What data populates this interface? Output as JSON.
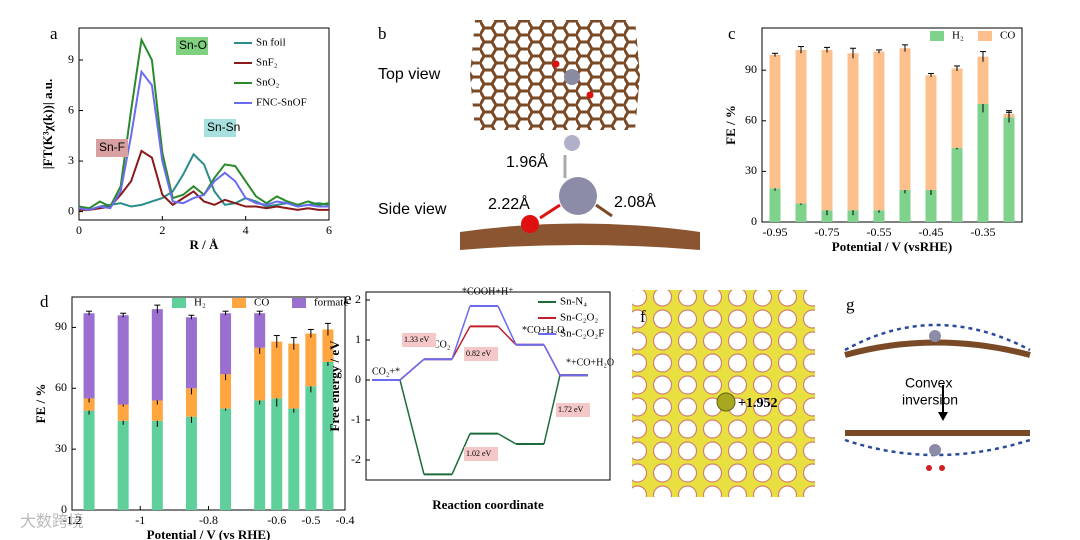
{
  "chart_data": [
    {
      "label": "a",
      "type": "line",
      "xlabel": "R / Å",
      "ylabel": "|FT(K³χ(k))| a.u.",
      "x": [
        0,
        0.25,
        0.5,
        0.75,
        1,
        1.25,
        1.5,
        1.75,
        2,
        2.25,
        2.5,
        2.75,
        3,
        3.25,
        3.5,
        3.75,
        4,
        4.25,
        4.5,
        4.75,
        5,
        5.25,
        5.5,
        5.75,
        6
      ],
      "xlim": [
        0,
        6
      ],
      "xticks": [
        0,
        2,
        4,
        6
      ],
      "ylim": [
        -0.5,
        10.9
      ],
      "yticks": [
        0,
        3,
        6,
        9
      ],
      "annotations": [
        "Sn-O",
        "Sn-F",
        "Sn-Sn"
      ],
      "legend": "upper right",
      "series": [
        {
          "name": "Sn foil",
          "color": "#2a8c8c",
          "values": [
            0.2,
            0.1,
            0.3,
            0.4,
            0.5,
            0.3,
            0.4,
            0.6,
            0.8,
            1.2,
            2.2,
            3.4,
            2.8,
            1.2,
            0.4,
            0.5,
            0.8,
            0.6,
            0.3,
            0.4,
            0.5,
            0.3,
            0.4,
            0.5,
            0.4
          ]
        },
        {
          "name": "SnF₂",
          "color": "#8b1a1a",
          "values": [
            0.1,
            0.1,
            0.2,
            0.3,
            1.0,
            1.8,
            3.6,
            3.2,
            1.0,
            0.4,
            0.8,
            1.2,
            0.6,
            0.4,
            0.7,
            0.5,
            0.3,
            0.3,
            0.2,
            0.3,
            0.2,
            0.1,
            0.2,
            0.1,
            0.1
          ]
        },
        {
          "name": "SnO₂",
          "color": "#2a8a2a",
          "values": [
            0.3,
            0.2,
            0.6,
            0.3,
            1.5,
            6.0,
            10.2,
            9.0,
            3.5,
            0.8,
            1.0,
            1.5,
            1.0,
            2.0,
            2.8,
            2.7,
            1.8,
            0.9,
            0.5,
            0.9,
            0.6,
            0.4,
            0.6,
            0.4,
            0.5
          ]
        },
        {
          "name": "FNC-SnOF",
          "color": "#6b6bf0",
          "values": [
            0.2,
            0.1,
            0.3,
            0.2,
            1.2,
            4.5,
            8.3,
            7.5,
            3.0,
            0.6,
            0.5,
            0.8,
            1.0,
            1.8,
            2.3,
            1.8,
            0.8,
            0.5,
            0.4,
            0.6,
            0.5,
            0.3,
            0.4,
            0.3,
            0.3
          ]
        }
      ]
    },
    {
      "label": "c",
      "type": "bar",
      "xlabel": "Potential / V (vsRHE)",
      "ylabel": "FE / %",
      "categories": [
        "-0.95",
        null,
        "-0.75",
        null,
        "-0.55",
        null,
        "-0.45",
        null,
        "-0.35",
        null
      ],
      "ylim": [
        0,
        115
      ],
      "yticks": [
        0,
        30,
        60,
        90
      ],
      "legend": "upper right",
      "series": [
        {
          "name": "H₂",
          "color": "#7fd28c",
          "values": [
            20,
            11,
            7,
            7,
            7,
            19,
            19,
            44,
            70,
            62
          ],
          "errors": [
            1.5,
            1,
            3,
            3,
            1.5,
            2,
            3,
            1,
            5,
            3
          ]
        },
        {
          "name": "CO",
          "color": "#fdc08c",
          "values": [
            79,
            91,
            95,
            93,
            94,
            84,
            68,
            47,
            28,
            2
          ],
          "errors": [
            1,
            2,
            1.5,
            3,
            1,
            2,
            1,
            1.5,
            3,
            2
          ]
        }
      ]
    },
    {
      "label": "d",
      "type": "bar",
      "xlabel": "Potential / V (vs RHE)",
      "ylabel": "FE / %",
      "x": [
        -1.15,
        -1.05,
        -0.95,
        -0.85,
        -0.75,
        -0.65,
        -0.6,
        -0.55,
        -0.5,
        -0.45
      ],
      "xlim": [
        -1.2,
        -0.4
      ],
      "xticks": [
        -1.2,
        -1,
        -0.8,
        -0.6,
        -0.5,
        -0.4
      ],
      "ylim": [
        0,
        105
      ],
      "yticks": [
        0,
        30,
        60,
        90
      ],
      "legend": "upper center",
      "series": [
        {
          "name": "H₂",
          "color": "#5fd09c",
          "values": [
            49,
            44,
            44,
            46,
            50,
            54,
            55,
            50,
            61,
            73
          ],
          "errors": [
            2,
            2,
            3,
            3,
            1,
            2,
            4,
            2,
            3,
            2
          ]
        },
        {
          "name": "CO",
          "color": "#ffa640",
          "values": [
            6,
            8,
            10,
            14,
            17,
            26,
            28,
            32,
            26,
            16
          ],
          "errors": [
            2,
            1,
            2,
            3,
            3,
            3,
            3,
            3,
            2,
            3
          ]
        },
        {
          "name": "formate",
          "color": "#9b6fd0",
          "values": [
            42,
            44,
            45,
            35,
            30,
            17,
            0,
            0,
            0,
            0
          ],
          "errors": [
            1,
            1,
            2,
            1,
            1,
            1,
            0,
            0,
            0,
            0
          ]
        }
      ]
    },
    {
      "label": "e",
      "type": "step",
      "xlabel": "Reaction coordinate",
      "ylabel": "Free energy / eV",
      "categories": [
        "CO₂+*",
        "*CO₂",
        "*COOH+H⁺",
        "*CO+H₂O",
        "*+CO+H₂O"
      ],
      "ylim": [
        -2.5,
        2.2
      ],
      "yticks": [
        -2,
        -1,
        0,
        1,
        2
      ],
      "legend": "upper right",
      "annotations": [
        "1.33 eV",
        "0.82 eV",
        "1.02 eV",
        "1.72 eV"
      ],
      "series": [
        {
          "name": "Sn-N₄",
          "color": "#1e6b3a",
          "values": [
            0,
            -2.36,
            -1.34,
            -1.6,
            0.12
          ]
        },
        {
          "name": "Sn-C₂O₂",
          "color": "#c0202a",
          "values": [
            0,
            0.52,
            1.34,
            0.88,
            0.12
          ]
        },
        {
          "name": "Sn-C₂O₂F",
          "color": "#6b6bf0",
          "values": [
            0,
            0.52,
            1.85,
            0.88,
            0.12
          ]
        }
      ]
    }
  ],
  "diagrams": {
    "b": {
      "label": "b",
      "top": "Top view",
      "side": "Side view",
      "bonds": [
        "1.96Å",
        "2.22Å",
        "2.08Å"
      ]
    },
    "f": {
      "label": "f",
      "charge": "+1.952"
    },
    "g": {
      "label": "g",
      "text": [
        "Convex",
        "inversion"
      ]
    }
  },
  "watermark": "大数跨境"
}
